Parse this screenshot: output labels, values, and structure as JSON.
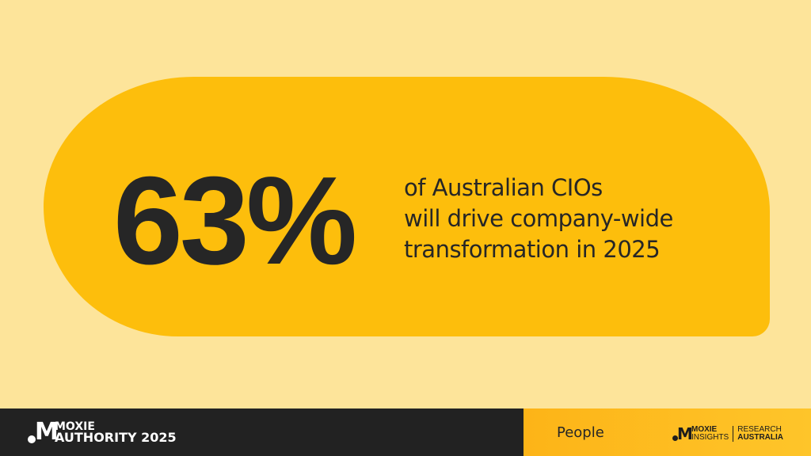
{
  "stat": {
    "value": "63%",
    "lines": [
      "of Australian CIOs",
      "will drive company-wide",
      "transformation in 2025"
    ]
  },
  "footer": {
    "left_logo": {
      "line1": "MOXIE",
      "line2": "AUTHORITY 2025"
    },
    "category": "People",
    "right_logo": {
      "brand1": "MOXIE",
      "brand2": "INSIGHTS",
      "partner1": "RESEARCH",
      "partner2": "AUSTRALIA"
    }
  },
  "colors": {
    "background": "#fde49a",
    "card": "#fdbe0c",
    "footer": "#222222",
    "accent": "#fdb417"
  }
}
